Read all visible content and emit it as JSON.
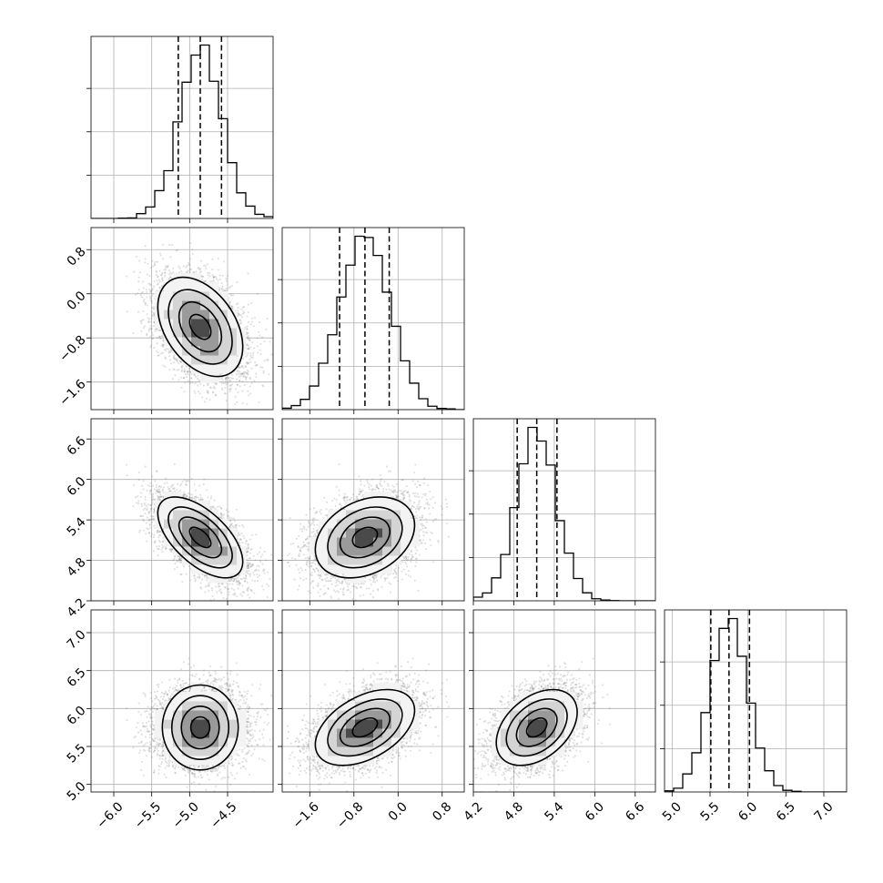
{
  "chart_data": {
    "type": "corner",
    "n_params": 4,
    "params": [
      {
        "range": [
          -6.3,
          -3.9
        ],
        "ticks": [
          -6.0,
          -5.5,
          -5.0,
          -4.5
        ],
        "tick_labels": [
          "−6.0",
          "−5.5",
          "−5.0",
          "−4.5"
        ],
        "quantiles": [
          -5.15,
          -4.86,
          -4.58
        ],
        "mean": -4.86,
        "sd": 0.28
      },
      {
        "range": [
          -2.1,
          1.2
        ],
        "ticks": [
          -1.6,
          -0.8,
          0.0,
          0.8
        ],
        "tick_labels": [
          "−1.6",
          "−0.8",
          "0.0",
          "0.8"
        ],
        "quantiles": [
          -1.06,
          -0.6,
          -0.16
        ],
        "mean": -0.6,
        "sd": 0.45
      },
      {
        "range": [
          4.2,
          6.9
        ],
        "ticks": [
          4.2,
          4.8,
          5.4,
          6.0,
          6.6
        ],
        "tick_labels": [
          "4.2",
          "4.8",
          "5.4",
          "6.0",
          "6.6"
        ],
        "quantiles": [
          4.85,
          5.14,
          5.44
        ],
        "mean": 5.14,
        "sd": 0.3
      },
      {
        "range": [
          4.9,
          7.3
        ],
        "ticks": [
          5.0,
          5.5,
          6.0,
          6.5,
          7.0
        ],
        "tick_labels": [
          "5.0",
          "5.5",
          "6.0",
          "6.5",
          "7.0"
        ],
        "quantiles": [
          5.51,
          5.75,
          6.02
        ],
        "mean": 5.75,
        "sd": 0.25
      }
    ],
    "correlations": [
      [
        1.0,
        -0.4,
        -0.6,
        0.0
      ],
      [
        -0.4,
        1.0,
        0.3,
        0.45
      ],
      [
        -0.6,
        0.3,
        1.0,
        0.4
      ],
      [
        0.0,
        0.45,
        0.4,
        1.0
      ]
    ],
    "hist_bins": 20,
    "n_samples": 6000,
    "grid": true,
    "quantile_line_style": "dashed",
    "histogram_style": "step",
    "point_color": "#6f6f6f"
  }
}
